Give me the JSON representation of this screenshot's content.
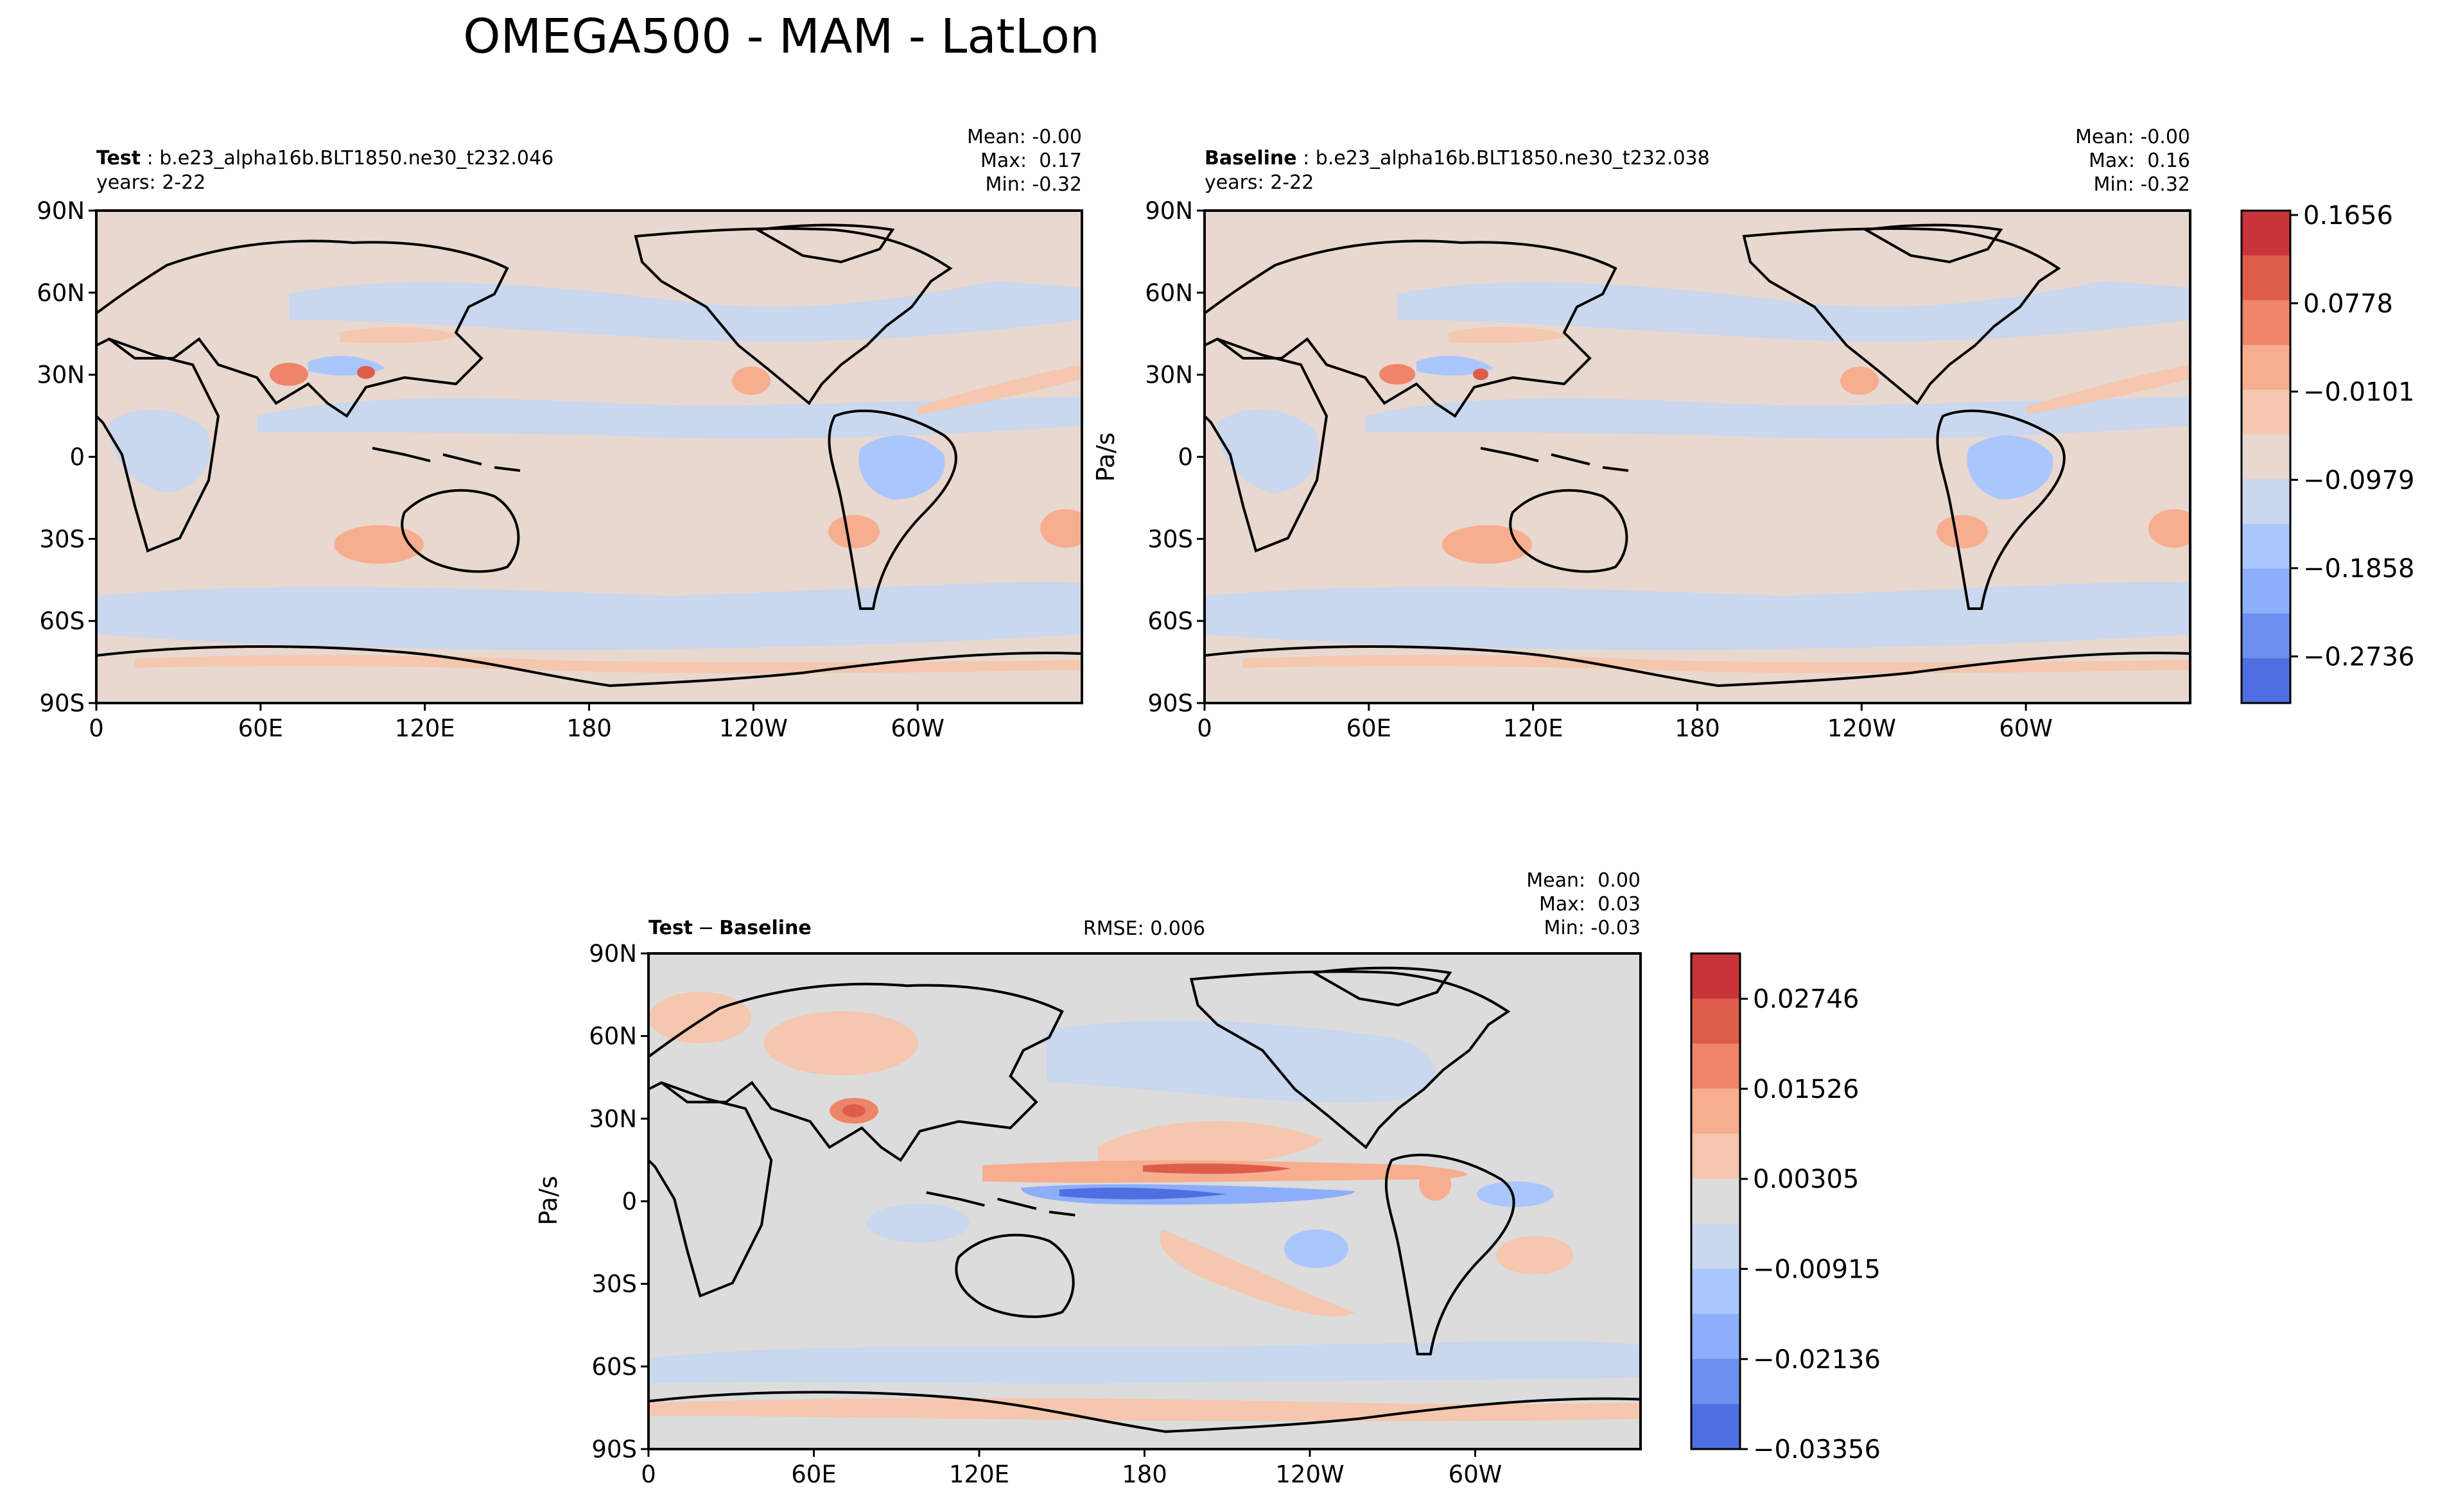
{
  "title": "OMEGA500 - MAM - LatLon",
  "colors": {
    "background": "#ffffff",
    "neutral_diff": "#dcdcdc",
    "neutral_field": "#e8d8cf",
    "coast": "#000000",
    "red_levels": [
      "#f4c7ae",
      "#f6ae8f",
      "#ee8468",
      "#de5d4a",
      "#c7343a"
    ],
    "blue_levels": [
      "#c9d7ef",
      "#aac7fd",
      "#8caefb",
      "#6c8ff0",
      "#4f6ee2",
      "#3e4fc4"
    ]
  },
  "panels": {
    "test": {
      "label": "Test",
      "case": "b.e23_alpha16b.BLT1850.ne30_t232.046",
      "years": "years: 2-22",
      "stats": {
        "mean": "Mean: -0.00",
        "max": "Max:  0.17",
        "min": "Min: -0.32"
      }
    },
    "baseline": {
      "label": "Baseline",
      "case": "b.e23_alpha16b.BLT1850.ne30_t232.038",
      "years": "years: 2-22",
      "ylabel": "Pa/s",
      "stats": {
        "mean": "Mean: -0.00",
        "max": "Max:  0.16",
        "min": "Min: -0.32"
      }
    },
    "diff": {
      "label_a": "Test",
      "label_sep": "−",
      "label_b": "Baseline",
      "rmse": "RMSE: 0.006",
      "ylabel": "Pa/s",
      "stats": {
        "mean": "Mean:  0.00",
        "max": "Max:  0.03",
        "min": "Min: -0.03"
      }
    }
  },
  "chart_data": [
    {
      "type": "heatmap",
      "panel": "test",
      "title": "Test : b.e23_alpha16b.BLT1850.ne30_t232.046",
      "subtitle": "years: 2-22",
      "xlabel": "",
      "ylabel": "",
      "xticks": [
        "0",
        "60E",
        "120E",
        "180",
        "120W",
        "60W"
      ],
      "yticks": [
        "90N",
        "60N",
        "30N",
        "0",
        "30S",
        "60S",
        "90S"
      ],
      "xlim": [
        0,
        360
      ],
      "ylim": [
        -90,
        90
      ],
      "stats": {
        "mean": -0.0,
        "max": 0.17,
        "min": -0.32
      }
    },
    {
      "type": "heatmap",
      "panel": "baseline",
      "title": "Baseline : b.e23_alpha16b.BLT1850.ne30_t232.038",
      "subtitle": "years: 2-22",
      "xlabel": "",
      "ylabel": "Pa/s",
      "xticks": [
        "0",
        "60E",
        "120E",
        "180",
        "120W",
        "60W"
      ],
      "yticks": [
        "90N",
        "60N",
        "30N",
        "0",
        "30S",
        "60S",
        "90S"
      ],
      "xlim": [
        0,
        360
      ],
      "ylim": [
        -90,
        90
      ],
      "stats": {
        "mean": -0.0,
        "max": 0.16,
        "min": -0.32
      },
      "colorbar": {
        "ticks": [
          "0.1656",
          "0.0778",
          "−0.0101",
          "−0.0979",
          "−0.1858",
          "−0.2736"
        ],
        "tick_values": [
          0.1656,
          0.0778,
          -0.0101,
          -0.0979,
          -0.1858,
          -0.2736
        ],
        "range": [
          -0.32,
          0.17
        ]
      }
    },
    {
      "type": "heatmap",
      "panel": "diff",
      "title": "Test − Baseline",
      "rmse": 0.006,
      "xlabel": "",
      "ylabel": "Pa/s",
      "xticks": [
        "0",
        "60E",
        "120E",
        "180",
        "120W",
        "60W"
      ],
      "yticks": [
        "90N",
        "60N",
        "30N",
        "0",
        "30S",
        "60S",
        "90S"
      ],
      "xlim": [
        0,
        360
      ],
      "ylim": [
        -90,
        90
      ],
      "stats": {
        "mean": 0.0,
        "max": 0.03,
        "min": -0.03
      },
      "colorbar": {
        "ticks": [
          "0.02746",
          "0.01526",
          "0.00305",
          "−0.00915",
          "−0.02136",
          "−0.03356"
        ],
        "tick_values": [
          0.02746,
          0.01526,
          0.00305,
          -0.00915,
          -0.02136,
          -0.03356
        ],
        "range": [
          -0.03356,
          0.0336
        ]
      }
    }
  ]
}
